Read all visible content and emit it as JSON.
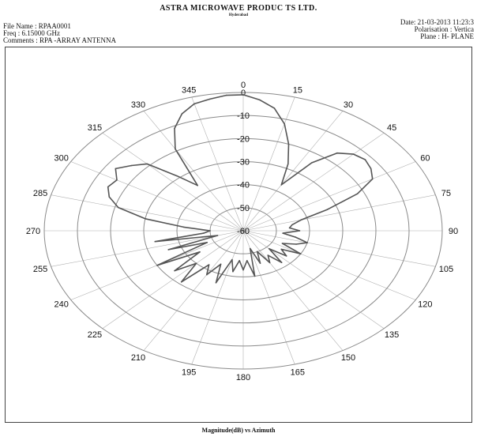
{
  "header": {
    "company": "ASTRA MICROWAVE PRODUC TS LTD.",
    "city": "Hyderabad",
    "file_name": "File Name : RPAA0001",
    "frequency": "Freq : 6.15000 GHz",
    "comments": "Comments : RPA -ARRAY ANTENNA",
    "date": "Date: 21-03-2013 11:23:3",
    "polarisation": "Polarisation : Vertica",
    "plane": "Plane : H- PLANE"
  },
  "colors": {
    "trace": "#555555",
    "grid": "#8a8a8a",
    "spokes": "#b0b0b0",
    "text": "#111111"
  },
  "chart_data": {
    "type": "line",
    "subtype": "polar",
    "xlabel": "Magnitude(dB) vs Azimuth",
    "angle_ticks": [
      "0",
      "15",
      "30",
      "45",
      "60",
      "75",
      "90",
      "105",
      "120",
      "135",
      "150",
      "165",
      "180",
      "195",
      "210",
      "225",
      "240",
      "255",
      "270",
      "285",
      "300",
      "315",
      "330",
      "345"
    ],
    "radial_ticks": [
      "0",
      "-10",
      "-20",
      "-30",
      "-40",
      "-50",
      "-60"
    ],
    "rlim": [
      -60,
      0
    ],
    "grid": true,
    "series": [
      {
        "azimuth_deg": [
          0,
          5,
          10,
          15,
          20,
          25,
          30,
          35,
          40,
          45,
          50,
          55,
          60,
          65,
          70,
          75,
          80,
          85,
          90,
          95,
          100,
          105,
          110,
          115,
          120,
          125,
          130,
          135,
          140,
          145,
          150,
          155,
          160,
          165,
          170,
          175,
          180,
          185,
          190,
          195,
          200,
          205,
          210,
          215,
          220,
          225,
          230,
          235,
          240,
          245,
          250,
          255,
          260,
          265,
          270,
          275,
          280,
          285,
          290,
          295,
          300,
          305,
          310,
          315,
          320,
          325,
          330,
          335,
          340,
          345,
          350,
          355
        ],
        "magnitude_db": [
          -1,
          -3,
          -6,
          -12,
          -20,
          -28,
          -37,
          -24,
          -16,
          -13,
          -12,
          -13,
          -15,
          -22,
          -33,
          -42,
          -45,
          -46,
          -43,
          -48,
          -44,
          -40,
          -43,
          -47,
          -40,
          -46,
          -43,
          -49,
          -42,
          -47,
          -44,
          -50,
          -45,
          -52,
          -40,
          -47,
          -43,
          -47,
          -42,
          -47,
          -36,
          -44,
          -38,
          -42,
          -31,
          -40,
          -33,
          -44,
          -30,
          -48,
          -36,
          -52,
          -33,
          -48,
          -50,
          -42,
          -30,
          -21,
          -17,
          -15,
          -16,
          -13,
          -16,
          -19,
          -29,
          -36,
          -19,
          -11,
          -6,
          -3,
          -2,
          -1
        ]
      }
    ]
  }
}
